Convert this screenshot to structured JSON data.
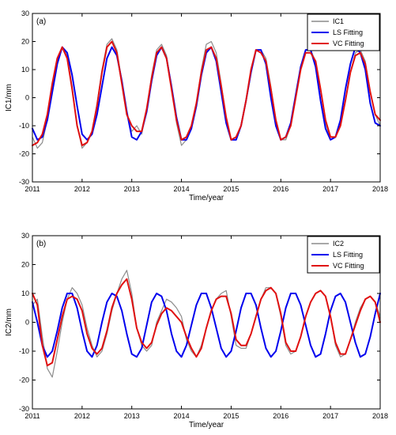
{
  "chart_data": [
    {
      "type": "line",
      "panel_label": "(a)",
      "xlabel": "Time/year",
      "ylabel": "IC1/mm",
      "xlim": [
        2011,
        2018
      ],
      "ylim": [
        -30,
        30
      ],
      "xticks": [
        "2011",
        "2012",
        "2013",
        "2014",
        "2015",
        "2016",
        "2017",
        "2018"
      ],
      "yticks": [
        "-30",
        "-20",
        "-10",
        "0",
        "10",
        "20",
        "30"
      ],
      "legend_position": "top-right",
      "series": [
        {
          "name": "IC1",
          "color": "#8c8c8c",
          "x": [
            2011.0,
            2011.1,
            2011.2,
            2011.3,
            2011.4,
            2011.5,
            2011.6,
            2011.7,
            2011.8,
            2011.9,
            2012.0,
            2012.1,
            2012.2,
            2012.3,
            2012.4,
            2012.5,
            2012.6,
            2012.7,
            2012.8,
            2012.9,
            2013.0,
            2013.1,
            2013.2,
            2013.3,
            2013.4,
            2013.5,
            2013.6,
            2013.7,
            2013.8,
            2013.9,
            2014.0,
            2014.1,
            2014.2,
            2014.3,
            2014.4,
            2014.5,
            2014.6,
            2014.7,
            2014.8,
            2014.9,
            2015.0,
            2015.1,
            2015.2,
            2015.3,
            2015.4,
            2015.5,
            2015.6,
            2015.7,
            2015.8,
            2015.9,
            2016.0,
            2016.1,
            2016.2,
            2016.3,
            2016.4,
            2016.5,
            2016.6,
            2016.7,
            2016.8,
            2016.9,
            2017.0,
            2017.1,
            2017.2,
            2017.3,
            2017.4,
            2017.5,
            2017.6,
            2017.7,
            2017.8,
            2017.9,
            2018.0
          ],
          "y": [
            -14,
            -18,
            -16,
            -8,
            4,
            13,
            18,
            15,
            4,
            -10,
            -18,
            -16,
            -12,
            -2,
            10,
            19,
            21,
            17,
            6,
            -6,
            -12,
            -10,
            -13,
            -4,
            8,
            17,
            19,
            15,
            4,
            -9,
            -17,
            -15,
            -10,
            -2,
            10,
            19,
            20,
            16,
            5,
            -7,
            -15,
            -14,
            -10,
            -1,
            10,
            17,
            17,
            14,
            4,
            -8,
            -15,
            -15,
            -10,
            0,
            10,
            17,
            17,
            13,
            3,
            -9,
            -15,
            -14,
            -10,
            -1,
            9,
            16,
            17,
            13,
            2,
            -6,
            -10
          ]
        },
        {
          "name": "LS Fitting",
          "color": "#0000ee",
          "x": [
            2011.0,
            2011.1,
            2011.2,
            2011.3,
            2011.4,
            2011.5,
            2011.6,
            2011.7,
            2011.8,
            2011.9,
            2012.0,
            2012.1,
            2012.2,
            2012.3,
            2012.4,
            2012.5,
            2012.6,
            2012.7,
            2012.8,
            2012.9,
            2013.0,
            2013.1,
            2013.2,
            2013.3,
            2013.4,
            2013.5,
            2013.6,
            2013.7,
            2013.8,
            2013.9,
            2014.0,
            2014.1,
            2014.2,
            2014.3,
            2014.4,
            2014.5,
            2014.6,
            2014.7,
            2014.8,
            2014.9,
            2015.0,
            2015.1,
            2015.2,
            2015.3,
            2015.4,
            2015.5,
            2015.6,
            2015.7,
            2015.8,
            2015.9,
            2016.0,
            2016.1,
            2016.2,
            2016.3,
            2016.4,
            2016.5,
            2016.6,
            2016.7,
            2016.8,
            2016.9,
            2017.0,
            2017.1,
            2017.2,
            2017.3,
            2017.4,
            2017.5,
            2017.6,
            2017.7,
            2017.8,
            2017.9,
            2018.0
          ],
          "y": [
            -11,
            -15,
            -14,
            -8,
            2,
            12,
            18,
            16,
            8,
            -3,
            -13,
            -15,
            -13,
            -6,
            4,
            14,
            18,
            15,
            6,
            -5,
            -14,
            -15,
            -12,
            -5,
            6,
            15,
            18,
            14,
            4,
            -7,
            -15,
            -15,
            -11,
            -3,
            8,
            16,
            18,
            13,
            2,
            -9,
            -15,
            -15,
            -10,
            -1,
            9,
            17,
            17,
            12,
            0,
            -10,
            -15,
            -14,
            -9,
            1,
            11,
            17,
            17,
            11,
            -1,
            -11,
            -15,
            -14,
            -8,
            3,
            12,
            18,
            16,
            10,
            -2,
            -9,
            -10
          ]
        },
        {
          "name": "VC Fitting",
          "color": "#e01010",
          "x": [
            2011.0,
            2011.1,
            2011.2,
            2011.3,
            2011.4,
            2011.5,
            2011.6,
            2011.7,
            2011.8,
            2011.9,
            2012.0,
            2012.1,
            2012.2,
            2012.3,
            2012.4,
            2012.5,
            2012.6,
            2012.7,
            2012.8,
            2012.9,
            2013.0,
            2013.1,
            2013.2,
            2013.3,
            2013.4,
            2013.5,
            2013.6,
            2013.7,
            2013.8,
            2013.9,
            2014.0,
            2014.1,
            2014.2,
            2014.3,
            2014.4,
            2014.5,
            2014.6,
            2014.7,
            2014.8,
            2014.9,
            2015.0,
            2015.1,
            2015.2,
            2015.3,
            2015.4,
            2015.5,
            2015.6,
            2015.7,
            2015.8,
            2015.9,
            2016.0,
            2016.1,
            2016.2,
            2016.3,
            2016.4,
            2016.5,
            2016.6,
            2016.7,
            2016.8,
            2016.9,
            2017.0,
            2017.1,
            2017.2,
            2017.3,
            2017.4,
            2017.5,
            2017.6,
            2017.7,
            2017.8,
            2017.9,
            2018.0
          ],
          "y": [
            -17,
            -16,
            -13,
            -6,
            5,
            14,
            18,
            14,
            3,
            -10,
            -17,
            -16,
            -12,
            -3,
            9,
            18,
            20,
            16,
            5,
            -6,
            -10,
            -12,
            -12,
            -4,
            7,
            16,
            18,
            14,
            3,
            -8,
            -15,
            -14,
            -10,
            -2,
            9,
            17,
            18,
            14,
            4,
            -7,
            -15,
            -14,
            -10,
            -1,
            10,
            17,
            16,
            13,
            3,
            -8,
            -15,
            -14,
            -10,
            0,
            10,
            16,
            16,
            13,
            3,
            -8,
            -14,
            -14,
            -10,
            -1,
            9,
            15,
            16,
            12,
            2,
            -6,
            -8
          ]
        }
      ]
    },
    {
      "type": "line",
      "panel_label": "(b)",
      "xlabel": "Time/year",
      "ylabel": "IC2/mm",
      "xlim": [
        2011,
        2018
      ],
      "ylim": [
        -30,
        30
      ],
      "xticks": [
        "2011",
        "2012",
        "2013",
        "2014",
        "2015",
        "2016",
        "2017",
        "2018"
      ],
      "yticks": [
        "-30",
        "-20",
        "-10",
        "0",
        "10",
        "20",
        "30"
      ],
      "legend_position": "top-right",
      "series": [
        {
          "name": "IC2",
          "color": "#8c8c8c",
          "x": [
            2011.0,
            2011.1,
            2011.2,
            2011.3,
            2011.4,
            2011.5,
            2011.6,
            2011.7,
            2011.8,
            2011.9,
            2012.0,
            2012.1,
            2012.2,
            2012.3,
            2012.4,
            2012.5,
            2012.6,
            2012.7,
            2012.8,
            2012.9,
            2013.0,
            2013.1,
            2013.2,
            2013.3,
            2013.4,
            2013.5,
            2013.6,
            2013.7,
            2013.8,
            2013.9,
            2014.0,
            2014.1,
            2014.2,
            2014.3,
            2014.4,
            2014.5,
            2014.6,
            2014.7,
            2014.8,
            2014.9,
            2015.0,
            2015.1,
            2015.2,
            2015.3,
            2015.4,
            2015.5,
            2015.6,
            2015.7,
            2015.8,
            2015.9,
            2016.0,
            2016.1,
            2016.2,
            2016.3,
            2016.4,
            2016.5,
            2016.6,
            2016.7,
            2016.8,
            2016.9,
            2017.0,
            2017.1,
            2017.2,
            2017.3,
            2017.4,
            2017.5,
            2017.6,
            2017.7,
            2017.8,
            2017.9,
            2018.0
          ],
          "y": [
            6,
            8,
            -5,
            -16,
            -19,
            -10,
            0,
            8,
            12,
            10,
            6,
            -2,
            -8,
            -12,
            -10,
            -4,
            4,
            10,
            15,
            18,
            10,
            -2,
            -8,
            -10,
            -8,
            0,
            4,
            8,
            7,
            5,
            2,
            -6,
            -10,
            -12,
            -8,
            -2,
            4,
            8,
            10,
            11,
            2,
            -8,
            -9,
            -9,
            -4,
            2,
            8,
            12,
            12,
            10,
            2,
            -8,
            -11,
            -10,
            -5,
            2,
            7,
            10,
            11,
            9,
            2,
            -8,
            -12,
            -11,
            -6,
            0,
            5,
            8,
            9,
            7,
            2
          ]
        },
        {
          "name": "LS Fitting",
          "color": "#0000ee",
          "x": [
            2011.0,
            2011.1,
            2011.2,
            2011.3,
            2011.4,
            2011.5,
            2011.6,
            2011.7,
            2011.8,
            2011.9,
            2012.0,
            2012.1,
            2012.2,
            2012.3,
            2012.4,
            2012.5,
            2012.6,
            2012.7,
            2012.8,
            2012.9,
            2013.0,
            2013.1,
            2013.2,
            2013.3,
            2013.4,
            2013.5,
            2013.6,
            2013.7,
            2013.8,
            2013.9,
            2014.0,
            2014.1,
            2014.2,
            2014.3,
            2014.4,
            2014.5,
            2014.6,
            2014.7,
            2014.8,
            2014.9,
            2015.0,
            2015.1,
            2015.2,
            2015.3,
            2015.4,
            2015.5,
            2015.6,
            2015.7,
            2015.8,
            2015.9,
            2016.0,
            2016.1,
            2016.2,
            2016.3,
            2016.4,
            2016.5,
            2016.6,
            2016.7,
            2016.8,
            2016.9,
            2017.0,
            2017.1,
            2017.2,
            2017.3,
            2017.4,
            2017.5,
            2017.6,
            2017.7,
            2017.8,
            2017.9,
            2018.0
          ],
          "y": [
            7,
            0,
            -8,
            -12,
            -10,
            -3,
            5,
            10,
            10,
            5,
            -3,
            -10,
            -12,
            -8,
            0,
            7,
            10,
            9,
            4,
            -4,
            -11,
            -12,
            -9,
            -1,
            7,
            10,
            9,
            4,
            -4,
            -10,
            -12,
            -8,
            -1,
            6,
            10,
            10,
            5,
            -2,
            -9,
            -12,
            -10,
            -3,
            5,
            10,
            10,
            6,
            -2,
            -9,
            -12,
            -10,
            -3,
            5,
            10,
            10,
            6,
            -1,
            -8,
            -12,
            -11,
            -4,
            4,
            9,
            10,
            7,
            0,
            -7,
            -12,
            -11,
            -5,
            3,
            10
          ]
        },
        {
          "name": "VC Fitting",
          "color": "#e01010",
          "x": [
            2011.0,
            2011.1,
            2011.2,
            2011.3,
            2011.4,
            2011.5,
            2011.6,
            2011.7,
            2011.8,
            2011.9,
            2012.0,
            2012.1,
            2012.2,
            2012.3,
            2012.4,
            2012.5,
            2012.6,
            2012.7,
            2012.8,
            2012.9,
            2013.0,
            2013.1,
            2013.2,
            2013.3,
            2013.4,
            2013.5,
            2013.6,
            2013.7,
            2013.8,
            2013.9,
            2014.0,
            2014.1,
            2014.2,
            2014.3,
            2014.4,
            2014.5,
            2014.6,
            2014.7,
            2014.8,
            2014.9,
            2015.0,
            2015.1,
            2015.2,
            2015.3,
            2015.4,
            2015.5,
            2015.6,
            2015.7,
            2015.8,
            2015.9,
            2016.0,
            2016.1,
            2016.2,
            2016.3,
            2016.4,
            2016.5,
            2016.6,
            2016.7,
            2016.8,
            2016.9,
            2017.0,
            2017.1,
            2017.2,
            2017.3,
            2017.4,
            2017.5,
            2017.6,
            2017.7,
            2017.8,
            2017.9,
            2018.0
          ],
          "y": [
            10,
            6,
            -8,
            -15,
            -14,
            -6,
            2,
            8,
            9,
            8,
            4,
            -4,
            -9,
            -11,
            -9,
            -3,
            5,
            10,
            13,
            15,
            8,
            -2,
            -7,
            -9,
            -7,
            -1,
            3,
            5,
            4,
            2,
            0,
            -5,
            -9,
            -12,
            -9,
            -2,
            4,
            8,
            9,
            9,
            3,
            -6,
            -8,
            -8,
            -4,
            2,
            8,
            11,
            12,
            10,
            3,
            -7,
            -10,
            -10,
            -5,
            2,
            7,
            10,
            11,
            9,
            2,
            -7,
            -11,
            -11,
            -6,
            -1,
            4,
            8,
            9,
            7,
            0
          ]
        }
      ]
    }
  ]
}
